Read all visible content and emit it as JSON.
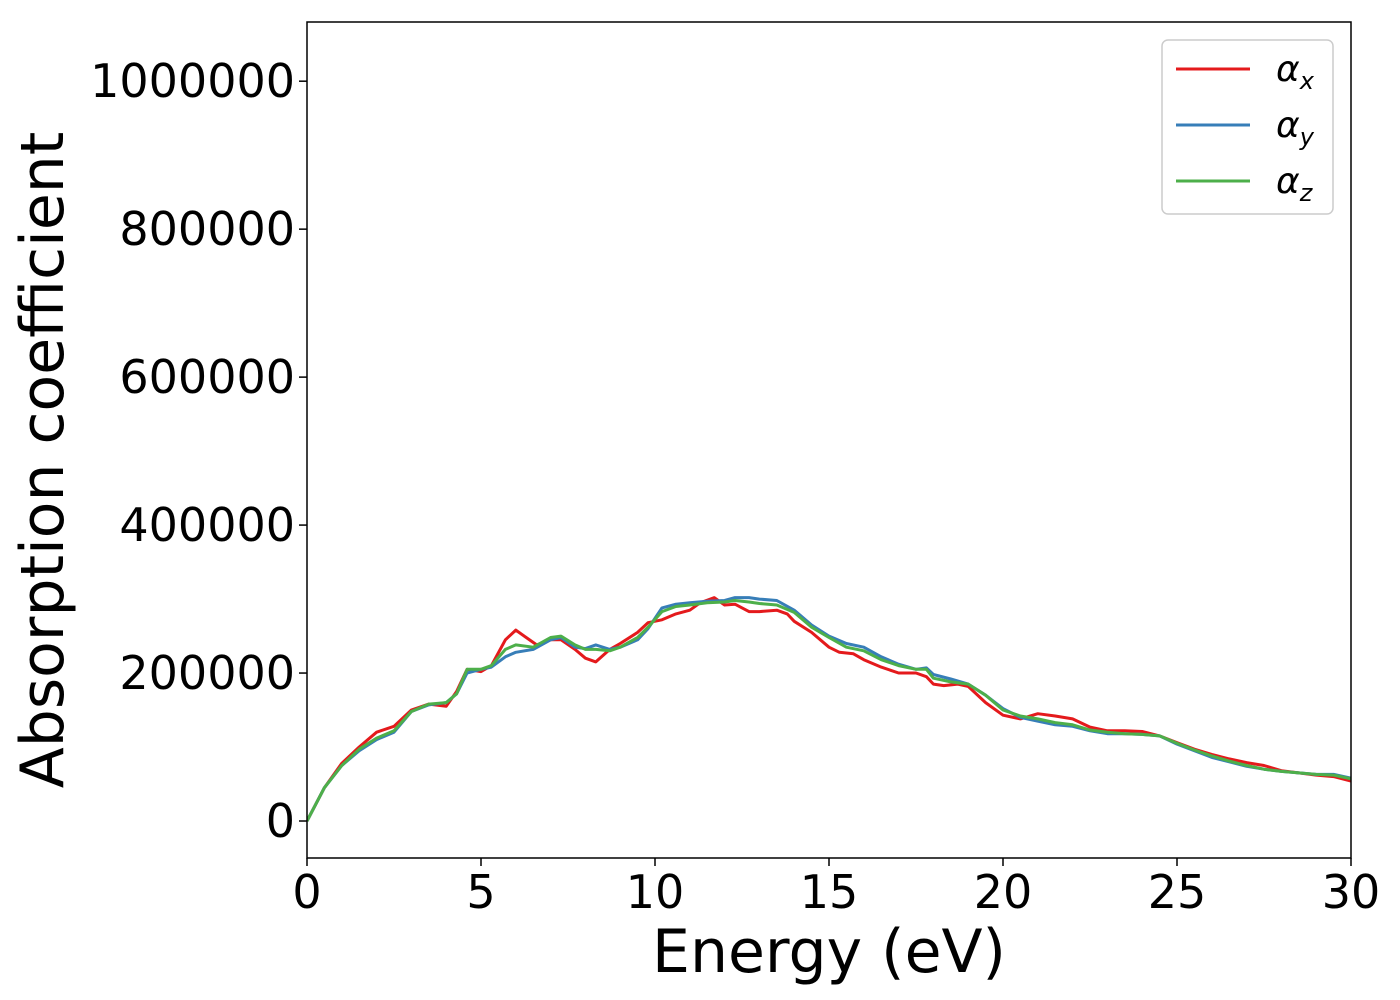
{
  "chart_data": {
    "type": "line",
    "xlabel": "Energy (eV)",
    "ylabel": "Absorption coefficient",
    "xlim": [
      0,
      30
    ],
    "ylim": [
      -50000,
      1080000
    ],
    "x_ticks": [
      0,
      5,
      10,
      15,
      20,
      25,
      30
    ],
    "y_ticks": [
      0,
      200000,
      400000,
      600000,
      800000,
      1000000
    ],
    "legend_position": "top-right",
    "grid": false,
    "series": [
      {
        "name": "α_x",
        "label_base": "α",
        "label_sub": "x",
        "color": "#e41a1c",
        "points": [
          [
            0,
            0
          ],
          [
            0.5,
            45000
          ],
          [
            1,
            78000
          ],
          [
            1.5,
            100000
          ],
          [
            2,
            120000
          ],
          [
            2.5,
            128000
          ],
          [
            3,
            150000
          ],
          [
            3.5,
            158000
          ],
          [
            4,
            155000
          ],
          [
            4.3,
            175000
          ],
          [
            4.6,
            205000
          ],
          [
            5,
            202000
          ],
          [
            5.3,
            210000
          ],
          [
            5.7,
            245000
          ],
          [
            6,
            258000
          ],
          [
            6.3,
            248000
          ],
          [
            6.6,
            238000
          ],
          [
            7,
            245000
          ],
          [
            7.3,
            245000
          ],
          [
            7.7,
            232000
          ],
          [
            8,
            220000
          ],
          [
            8.3,
            215000
          ],
          [
            8.7,
            232000
          ],
          [
            9,
            240000
          ],
          [
            9.5,
            255000
          ],
          [
            9.8,
            268000
          ],
          [
            10.2,
            272000
          ],
          [
            10.6,
            280000
          ],
          [
            11,
            285000
          ],
          [
            11.3,
            295000
          ],
          [
            11.7,
            302000
          ],
          [
            12,
            292000
          ],
          [
            12.3,
            293000
          ],
          [
            12.7,
            283000
          ],
          [
            13,
            283000
          ],
          [
            13.5,
            285000
          ],
          [
            13.8,
            280000
          ],
          [
            14,
            270000
          ],
          [
            14.5,
            255000
          ],
          [
            15,
            235000
          ],
          [
            15.3,
            228000
          ],
          [
            15.7,
            226000
          ],
          [
            16,
            218000
          ],
          [
            16.5,
            208000
          ],
          [
            17,
            200000
          ],
          [
            17.5,
            200000
          ],
          [
            17.8,
            195000
          ],
          [
            18,
            185000
          ],
          [
            18.3,
            183000
          ],
          [
            18.7,
            185000
          ],
          [
            19,
            182000
          ],
          [
            19.5,
            160000
          ],
          [
            20,
            143000
          ],
          [
            20.5,
            138000
          ],
          [
            21,
            145000
          ],
          [
            21.5,
            142000
          ],
          [
            22,
            138000
          ],
          [
            22.5,
            127000
          ],
          [
            23,
            122000
          ],
          [
            23.5,
            122000
          ],
          [
            24,
            121000
          ],
          [
            24.5,
            115000
          ],
          [
            25,
            106000
          ],
          [
            25.5,
            97000
          ],
          [
            26,
            90000
          ],
          [
            26.5,
            84000
          ],
          [
            27,
            79000
          ],
          [
            27.5,
            75000
          ],
          [
            28,
            68000
          ],
          [
            28.5,
            65000
          ],
          [
            29,
            62000
          ],
          [
            29.5,
            60000
          ],
          [
            30,
            54000
          ]
        ]
      },
      {
        "name": "α_y",
        "label_base": "α",
        "label_sub": "y",
        "color": "#377eb8",
        "points": [
          [
            0,
            0
          ],
          [
            0.5,
            45000
          ],
          [
            1,
            75000
          ],
          [
            1.5,
            95000
          ],
          [
            2,
            110000
          ],
          [
            2.5,
            120000
          ],
          [
            3,
            148000
          ],
          [
            3.5,
            157000
          ],
          [
            4,
            160000
          ],
          [
            4.3,
            172000
          ],
          [
            4.6,
            200000
          ],
          [
            5,
            205000
          ],
          [
            5.3,
            208000
          ],
          [
            5.7,
            222000
          ],
          [
            6,
            228000
          ],
          [
            6.5,
            232000
          ],
          [
            7,
            245000
          ],
          [
            7.3,
            248000
          ],
          [
            7.7,
            235000
          ],
          [
            8,
            233000
          ],
          [
            8.3,
            238000
          ],
          [
            8.7,
            232000
          ],
          [
            9,
            235000
          ],
          [
            9.5,
            245000
          ],
          [
            9.8,
            260000
          ],
          [
            10.2,
            288000
          ],
          [
            10.6,
            293000
          ],
          [
            11,
            295000
          ],
          [
            11.5,
            297000
          ],
          [
            12,
            298000
          ],
          [
            12.3,
            302000
          ],
          [
            12.7,
            302000
          ],
          [
            13,
            300000
          ],
          [
            13.5,
            298000
          ],
          [
            14,
            285000
          ],
          [
            14.5,
            265000
          ],
          [
            15,
            250000
          ],
          [
            15.5,
            240000
          ],
          [
            16,
            235000
          ],
          [
            16.5,
            222000
          ],
          [
            17,
            212000
          ],
          [
            17.5,
            205000
          ],
          [
            17.8,
            207000
          ],
          [
            18,
            198000
          ],
          [
            18.5,
            192000
          ],
          [
            19,
            185000
          ],
          [
            19.5,
            170000
          ],
          [
            20,
            152000
          ],
          [
            20.5,
            140000
          ],
          [
            21,
            135000
          ],
          [
            21.5,
            130000
          ],
          [
            22,
            128000
          ],
          [
            22.5,
            122000
          ],
          [
            23,
            118000
          ],
          [
            23.5,
            118000
          ],
          [
            24,
            117000
          ],
          [
            24.5,
            115000
          ],
          [
            25,
            104000
          ],
          [
            25.5,
            95000
          ],
          [
            26,
            86000
          ],
          [
            26.5,
            80000
          ],
          [
            27,
            74000
          ],
          [
            27.5,
            70000
          ],
          [
            28,
            67000
          ],
          [
            28.5,
            65000
          ],
          [
            29,
            63000
          ],
          [
            29.5,
            63000
          ],
          [
            30,
            58000
          ]
        ]
      },
      {
        "name": "α_z",
        "label_base": "α",
        "label_sub": "z",
        "color": "#4daf4a",
        "points": [
          [
            0,
            0
          ],
          [
            0.5,
            45000
          ],
          [
            1,
            75000
          ],
          [
            1.5,
            97000
          ],
          [
            2,
            112000
          ],
          [
            2.5,
            122000
          ],
          [
            3,
            148000
          ],
          [
            3.5,
            158000
          ],
          [
            4,
            160000
          ],
          [
            4.3,
            172000
          ],
          [
            4.6,
            205000
          ],
          [
            5,
            205000
          ],
          [
            5.3,
            210000
          ],
          [
            5.7,
            232000
          ],
          [
            6,
            238000
          ],
          [
            6.5,
            235000
          ],
          [
            7,
            248000
          ],
          [
            7.3,
            250000
          ],
          [
            7.7,
            238000
          ],
          [
            8,
            232000
          ],
          [
            8.3,
            232000
          ],
          [
            8.7,
            230000
          ],
          [
            9,
            235000
          ],
          [
            9.5,
            248000
          ],
          [
            9.8,
            262000
          ],
          [
            10.2,
            283000
          ],
          [
            10.6,
            290000
          ],
          [
            11,
            292000
          ],
          [
            11.5,
            295000
          ],
          [
            12,
            296000
          ],
          [
            12.3,
            298000
          ],
          [
            12.7,
            296000
          ],
          [
            13,
            294000
          ],
          [
            13.5,
            292000
          ],
          [
            14,
            282000
          ],
          [
            14.5,
            262000
          ],
          [
            15,
            248000
          ],
          [
            15.5,
            235000
          ],
          [
            16,
            230000
          ],
          [
            16.5,
            218000
          ],
          [
            17,
            210000
          ],
          [
            17.5,
            205000
          ],
          [
            17.8,
            205000
          ],
          [
            18,
            193000
          ],
          [
            18.5,
            188000
          ],
          [
            19,
            185000
          ],
          [
            19.5,
            170000
          ],
          [
            20,
            150000
          ],
          [
            20.5,
            142000
          ],
          [
            21,
            138000
          ],
          [
            21.5,
            133000
          ],
          [
            22,
            130000
          ],
          [
            22.5,
            123000
          ],
          [
            23,
            120000
          ],
          [
            23.5,
            118000
          ],
          [
            24,
            117000
          ],
          [
            24.5,
            115000
          ],
          [
            25,
            105000
          ],
          [
            25.5,
            96000
          ],
          [
            26,
            88000
          ],
          [
            26.5,
            81000
          ],
          [
            27,
            75000
          ],
          [
            27.5,
            70000
          ],
          [
            28,
            67000
          ],
          [
            28.5,
            65000
          ],
          [
            29,
            63000
          ],
          [
            29.5,
            62000
          ],
          [
            30,
            57000
          ]
        ]
      }
    ]
  }
}
